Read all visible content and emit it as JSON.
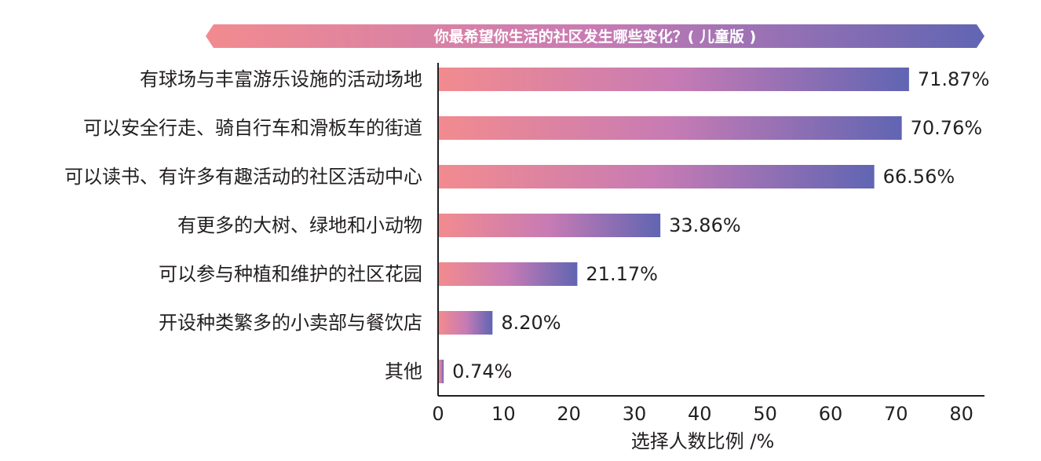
{
  "chart_data": {
    "type": "bar",
    "orientation": "horizontal",
    "title": "你最希望你生活的社区发生哪些变化？( 儿童版 )",
    "xlabel": "选择人数比例 /%",
    "ylabel": "",
    "xlim": [
      0,
      80
    ],
    "xticks": [
      0,
      10,
      20,
      30,
      40,
      50,
      60,
      70,
      80
    ],
    "grid": false,
    "categories": [
      "有球场与丰富游乐设施的活动场地",
      "可以安全行走、骑自行车和滑板车的街道",
      "可以读书、有许多有趣活动的社区活动中心",
      "有更多的大树、绿地和小动物",
      "可以参与种植和维护的社区花园",
      "开设种类繁多的小卖部与餐饮店",
      "其他"
    ],
    "values": [
      71.87,
      70.76,
      66.56,
      33.86,
      21.17,
      8.2,
      0.74
    ],
    "value_labels": [
      "71.87%",
      "70.76%",
      "66.56%",
      "33.86%",
      "21.17%",
      "8.20%",
      "0.74%"
    ]
  },
  "colors": {
    "gradient_start": "#f28b8f",
    "gradient_mid": "#c77bb4",
    "gradient_end": "#6065b3",
    "text": "#231f20",
    "axis": "#231f20"
  }
}
